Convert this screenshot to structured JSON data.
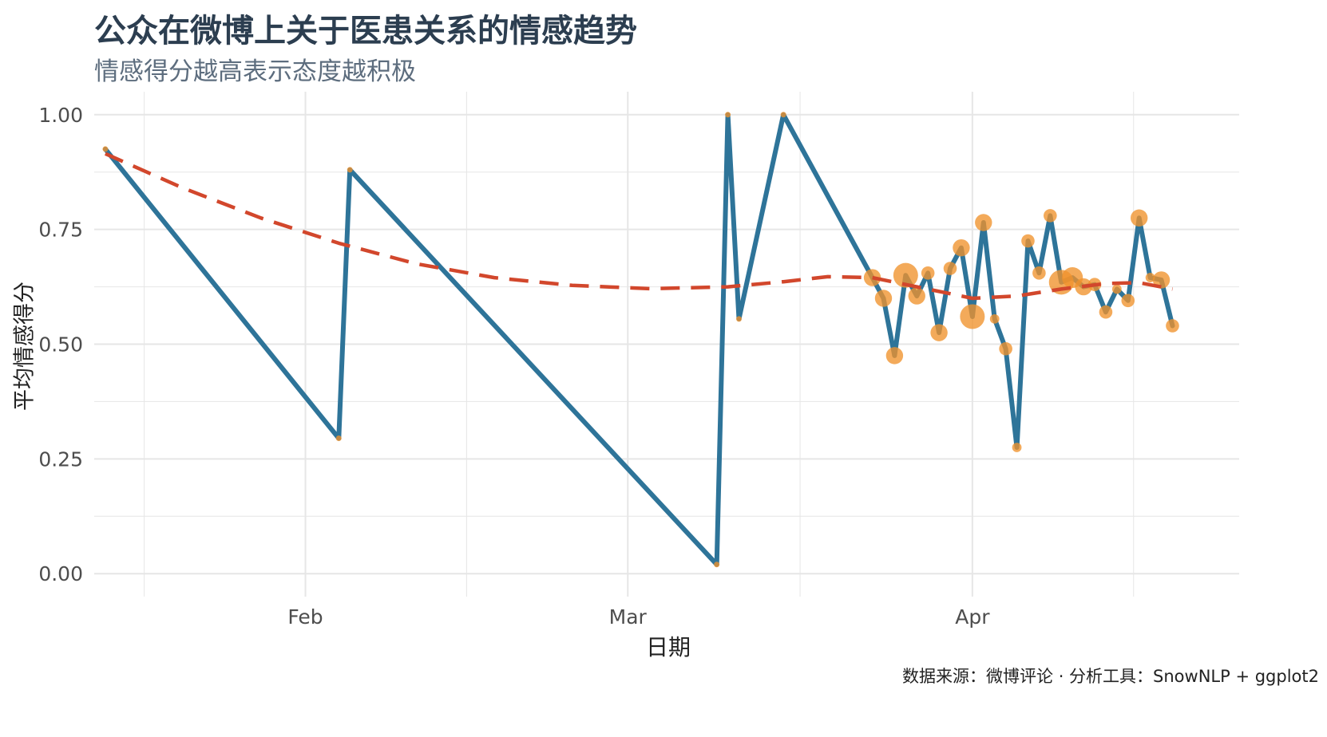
{
  "chart_data": {
    "type": "line",
    "title": "公众在微博上关于医患关系的情感趋势",
    "subtitle": "情感得分越高表示态度越积极",
    "xlabel": "日期",
    "ylabel": "平均情感得分",
    "caption": "数据来源：微博评论 · 分析工具：SnowNLP + ggplot2",
    "x_range": [
      "2020-01-13",
      "2020-04-25"
    ],
    "ylim": [
      -0.05,
      1.05
    ],
    "x_ticks": [
      {
        "date": "2020-02-01",
        "label": "Feb"
      },
      {
        "date": "2020-03-01",
        "label": "Mar"
      },
      {
        "date": "2020-04-01",
        "label": "Apr"
      }
    ],
    "y_ticks": [
      {
        "value": 0.0,
        "label": "0.00"
      },
      {
        "value": 0.25,
        "label": "0.25"
      },
      {
        "value": 0.5,
        "label": "0.50"
      },
      {
        "value": 0.75,
        "label": "0.75"
      },
      {
        "value": 1.0,
        "label": "1.00"
      }
    ],
    "grid": true,
    "colors": {
      "line": "#2e7499",
      "points": "#f0922b",
      "trend": "#d2472c",
      "grid": "#e6e6e6"
    },
    "series": [
      {
        "type": "line",
        "points": [
          {
            "x": "2020-01-14",
            "y": 0.925,
            "size": 1
          },
          {
            "x": "2020-02-04",
            "y": 0.295,
            "size": 1
          },
          {
            "x": "2020-02-05",
            "y": 0.88,
            "size": 1
          },
          {
            "x": "2020-03-09",
            "y": 0.02,
            "size": 1
          },
          {
            "x": "2020-03-10",
            "y": 1.0,
            "size": 1
          },
          {
            "x": "2020-03-11",
            "y": 0.555,
            "size": 1
          },
          {
            "x": "2020-03-15",
            "y": 1.0,
            "size": 1
          },
          {
            "x": "2020-03-23",
            "y": 0.645,
            "size": 4
          },
          {
            "x": "2020-03-24",
            "y": 0.6,
            "size": 4
          },
          {
            "x": "2020-03-25",
            "y": 0.475,
            "size": 4
          },
          {
            "x": "2020-03-26",
            "y": 0.65,
            "size": 6
          },
          {
            "x": "2020-03-27",
            "y": 0.605,
            "size": 4
          },
          {
            "x": "2020-03-28",
            "y": 0.655,
            "size": 3
          },
          {
            "x": "2020-03-29",
            "y": 0.525,
            "size": 4
          },
          {
            "x": "2020-03-30",
            "y": 0.665,
            "size": 3
          },
          {
            "x": "2020-03-31",
            "y": 0.71,
            "size": 4
          },
          {
            "x": "2020-04-01",
            "y": 0.56,
            "size": 6
          },
          {
            "x": "2020-04-02",
            "y": 0.765,
            "size": 4
          },
          {
            "x": "2020-04-03",
            "y": 0.555,
            "size": 2
          },
          {
            "x": "2020-04-04",
            "y": 0.49,
            "size": 3
          },
          {
            "x": "2020-04-05",
            "y": 0.275,
            "size": 2
          },
          {
            "x": "2020-04-06",
            "y": 0.725,
            "size": 3
          },
          {
            "x": "2020-04-07",
            "y": 0.655,
            "size": 3
          },
          {
            "x": "2020-04-08",
            "y": 0.78,
            "size": 3
          },
          {
            "x": "2020-04-09",
            "y": 0.635,
            "size": 6
          },
          {
            "x": "2020-04-10",
            "y": 0.645,
            "size": 5
          },
          {
            "x": "2020-04-11",
            "y": 0.625,
            "size": 4
          },
          {
            "x": "2020-04-12",
            "y": 0.63,
            "size": 3
          },
          {
            "x": "2020-04-13",
            "y": 0.57,
            "size": 3
          },
          {
            "x": "2020-04-14",
            "y": 0.62,
            "size": 2
          },
          {
            "x": "2020-04-15",
            "y": 0.595,
            "size": 3
          },
          {
            "x": "2020-04-16",
            "y": 0.775,
            "size": 4
          },
          {
            "x": "2020-04-17",
            "y": 0.645,
            "size": 2
          },
          {
            "x": "2020-04-18",
            "y": 0.64,
            "size": 4
          },
          {
            "x": "2020-04-19",
            "y": 0.54,
            "size": 3
          }
        ]
      },
      {
        "type": "trend",
        "style": "dashed",
        "points": [
          {
            "x": "2020-01-14",
            "y": 0.915
          },
          {
            "x": "2020-01-21",
            "y": 0.84
          },
          {
            "x": "2020-01-28",
            "y": 0.775
          },
          {
            "x": "2020-02-04",
            "y": 0.72
          },
          {
            "x": "2020-02-11",
            "y": 0.675
          },
          {
            "x": "2020-02-18",
            "y": 0.645
          },
          {
            "x": "2020-02-25",
            "y": 0.628
          },
          {
            "x": "2020-03-03",
            "y": 0.621
          },
          {
            "x": "2020-03-10",
            "y": 0.625
          },
          {
            "x": "2020-03-15",
            "y": 0.636
          },
          {
            "x": "2020-03-19",
            "y": 0.647
          },
          {
            "x": "2020-03-23",
            "y": 0.645
          },
          {
            "x": "2020-03-27",
            "y": 0.625
          },
          {
            "x": "2020-04-01",
            "y": 0.6
          },
          {
            "x": "2020-04-05",
            "y": 0.605
          },
          {
            "x": "2020-04-09",
            "y": 0.62
          },
          {
            "x": "2020-04-13",
            "y": 0.632
          },
          {
            "x": "2020-04-16",
            "y": 0.634
          },
          {
            "x": "2020-04-19",
            "y": 0.62
          }
        ]
      }
    ]
  }
}
